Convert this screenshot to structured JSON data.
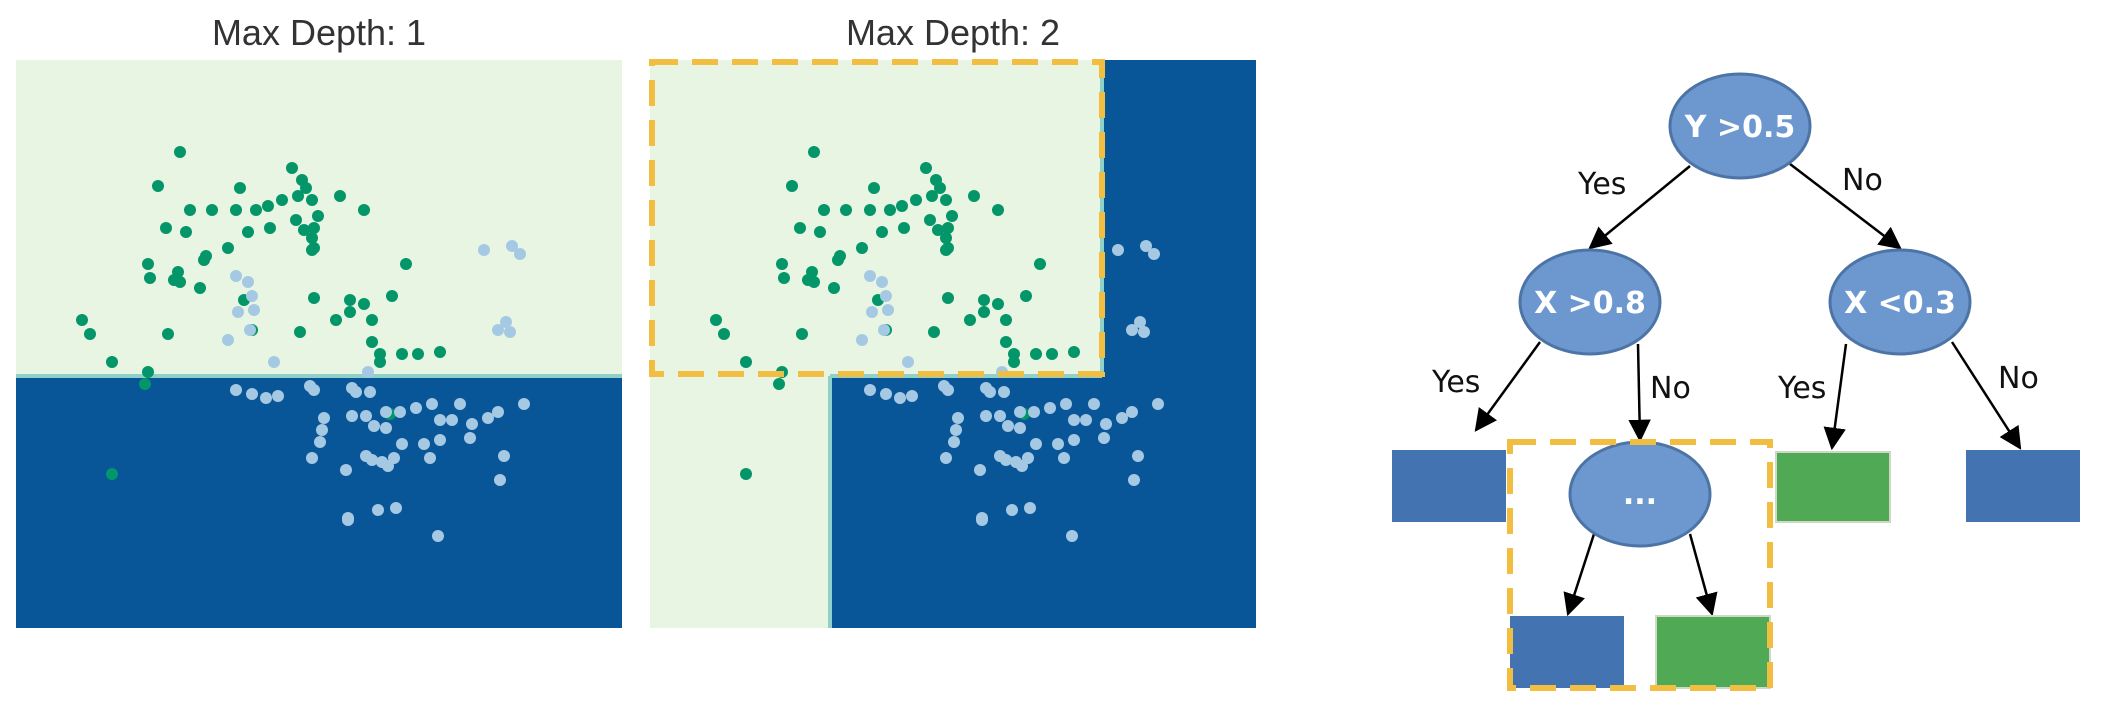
{
  "panels": [
    {
      "title": "Max Depth: 1"
    },
    {
      "title": "Max Depth: 2"
    }
  ],
  "colors": {
    "light_region": "#e8f5e3",
    "dark_region": "#085597",
    "green_point": "#049669",
    "light_point": "#a6c9e3",
    "node_fill": "#6d98cf",
    "node_stroke": "#4d74a6",
    "leaf_blue": "#4473b1",
    "leaf_green": "#4fa955",
    "highlight": "#f2be42"
  },
  "tree": {
    "root": "Y >0.5",
    "left": "X >0.8",
    "right": "X <0.3",
    "child": "...",
    "edges": {
      "root_yes": "Yes",
      "root_no": "No",
      "left_yes": "Yes",
      "left_no": "No",
      "right_yes": "Yes",
      "right_no": "No"
    }
  }
}
